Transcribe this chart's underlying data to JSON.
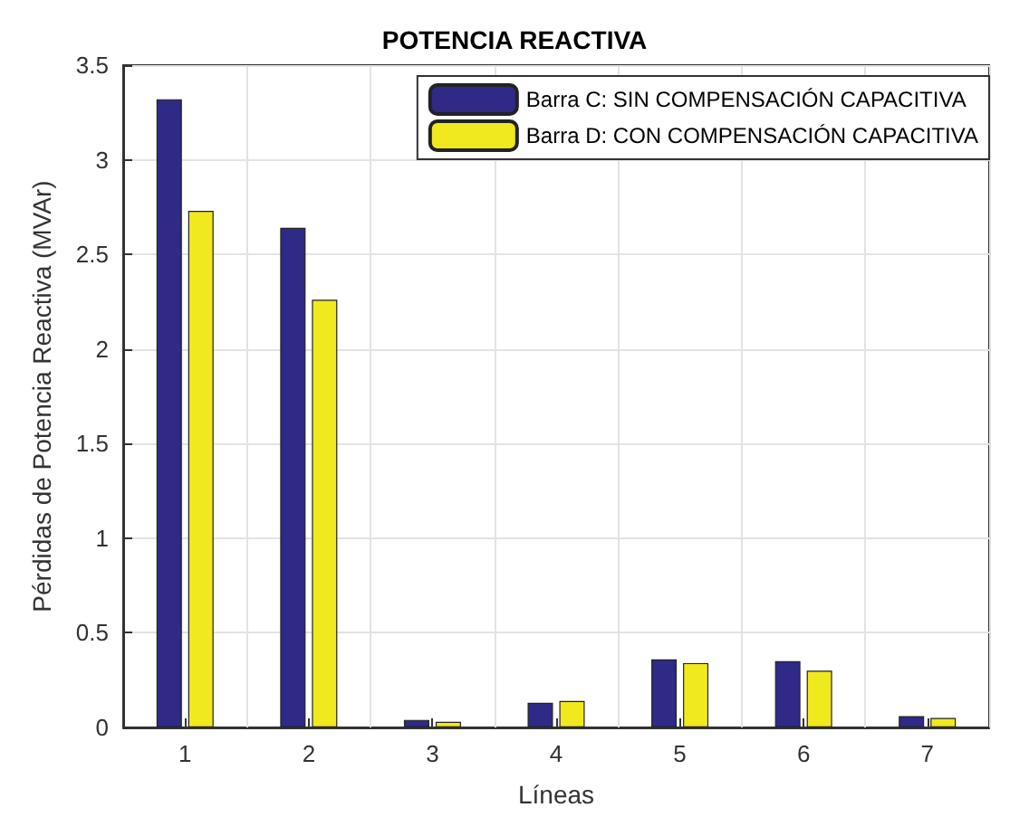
{
  "chart_data": {
    "type": "bar",
    "title": "POTENCIA REACTIVA",
    "xlabel": "Líneas",
    "ylabel": "Pérdidas de Potencia Reactiva (MVAr)",
    "categories": [
      "1",
      "2",
      "3",
      "4",
      "5",
      "6",
      "7"
    ],
    "series": [
      {
        "name": "Barra C: SIN COMPENSACIÓN CAPACITIVA",
        "color": "#2f2a86",
        "values": [
          3.32,
          2.64,
          0.04,
          0.13,
          0.36,
          0.35,
          0.06
        ]
      },
      {
        "name": "Barra D: CON COMPENSACIÓN CAPACITIVA",
        "color": "#f0e91e",
        "values": [
          2.73,
          2.26,
          0.03,
          0.14,
          0.34,
          0.3,
          0.05
        ]
      }
    ],
    "ylim": [
      0,
      3.5
    ],
    "yticks": [
      0,
      0.5,
      1,
      1.5,
      2,
      2.5,
      3,
      3.5
    ],
    "grid": true,
    "legend": "top right"
  }
}
